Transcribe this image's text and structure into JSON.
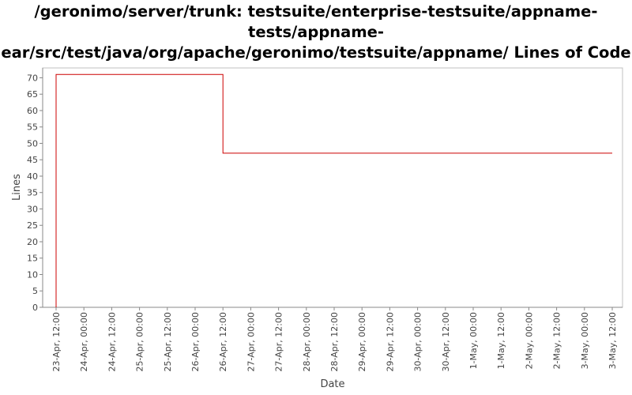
{
  "chart_data": {
    "type": "line",
    "title_lines": [
      "/geronimo/server/trunk: testsuite/enterprise-testsuite/appname-",
      "tests/appname-",
      "ear/src/test/java/org/apache/geronimo/testsuite/appname/ Lines of Code"
    ],
    "xlabel": "Date",
    "ylabel": "Lines",
    "ylim": [
      0,
      73
    ],
    "y_ticks": [
      0,
      5,
      10,
      15,
      20,
      25,
      30,
      35,
      40,
      45,
      50,
      55,
      60,
      65,
      70
    ],
    "x_tick_labels": [
      "23-Apr, 12:00",
      "24-Apr, 00:00",
      "24-Apr, 12:00",
      "25-Apr, 00:00",
      "25-Apr, 12:00",
      "26-Apr, 00:00",
      "26-Apr, 12:00",
      "27-Apr, 00:00",
      "27-Apr, 12:00",
      "28-Apr, 00:00",
      "28-Apr, 12:00",
      "29-Apr, 00:00",
      "29-Apr, 12:00",
      "30-Apr, 00:00",
      "30-Apr, 12:00",
      "1-May, 00:00",
      "1-May, 12:00",
      "2-May, 00:00",
      "2-May, 12:00",
      "3-May, 00:00",
      "3-May, 12:00"
    ],
    "grid": false,
    "step": true,
    "series": [
      {
        "points": [
          {
            "x": "23-Apr, 12:00",
            "y": 0
          },
          {
            "x": "23-Apr, 12:00",
            "y": 71
          },
          {
            "x": "26-Apr, 12:00",
            "y": 47
          },
          {
            "x": "3-May, 12:00",
            "y": 47
          }
        ]
      }
    ],
    "colors": {
      "line": "#cc0000",
      "axis": "#888888",
      "frame": "#c0c0c0"
    }
  }
}
